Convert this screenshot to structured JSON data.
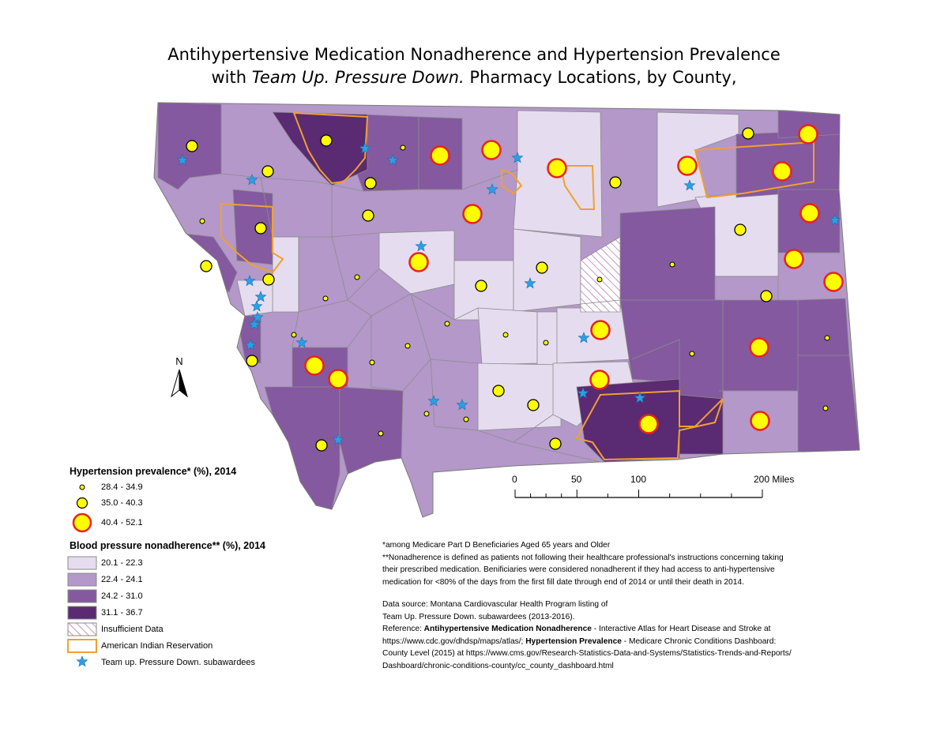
{
  "title": {
    "line1": "Antihypertensive Medication Nonadherence and Hypertension Prevalence",
    "line2_prefix": "with ",
    "line2_italic": "Team Up. Pressure Down.",
    "line2_suffix": " Pharmacy Locations, by County,"
  },
  "north_label": "N",
  "colors": {
    "class1": "#e6dcef",
    "class2": "#b398c9",
    "class3": "#84599f",
    "class4": "#5a2a72",
    "reservation": "#f0a030",
    "dot_fill": "#ffff00",
    "dot_ring_large": "#e8231c",
    "star": "#2aa0e6",
    "border": "#7f7f7f"
  },
  "legend": {
    "prevalence_title": "Hypertension prevalence* (%), 2014",
    "prevalence_classes": [
      "28.4 - 34.9",
      "35.0 - 40.3",
      "40.4 - 52.1"
    ],
    "nonadherence_title": "Blood pressure nonadherence** (%), 2014",
    "nonadherence_classes": [
      "20.1 - 22.3",
      "22.4 - 24.1",
      "24.2 - 31.0",
      "31.1 - 36.7"
    ],
    "insufficient_label": "Insufficient Data",
    "reservation_label": "American Indian Reservation",
    "star_label": "Team up. Pressure Down. subawardees"
  },
  "scale": {
    "labels": [
      "0",
      "50",
      "100",
      "200 Miles"
    ],
    "miles": [
      0,
      50,
      100,
      200
    ]
  },
  "notes": {
    "line1": "*among Medicare Part D Beneficiaries Aged 65 years and Older",
    "line2": "**Nonadherence is defined as patients not following their healthcare professional's instructions concerning taking",
    "line3": "their prescribed medication. Benificiaries were considered nonadherent if they had access to anti-hypertensive",
    "line4": "medication for <80% of the days from the first fill date through end of 2014 or until their death in 2014.",
    "source1": "Data source:  Montana Cardiovascular Health Program listing of",
    "source2": "Team Up. Pressure Down. subawardees (2013-2016).",
    "ref_prefix": "Reference: ",
    "ref_bold1": "Antihypertensive Medication Nonadherence",
    "ref_text1": " - Interactive Atlas for Heart Disease and Stroke at",
    "ref_url1": "https://www.cdc.gov/dhdsp/maps/atlas/; ",
    "ref_bold2": "Hypertension Prevalence",
    "ref_text2": " - Medicare Chronic Conditions Dashboard:",
    "ref_line3": "County Level (2015) at https://www.cms.gov/Research-Statistics-Data-and-Systems/Statistics-Trends-and-Reports/",
    "ref_line4": "Dashboard/chronic-conditions-county/cc_county_dashboard.html"
  }
}
